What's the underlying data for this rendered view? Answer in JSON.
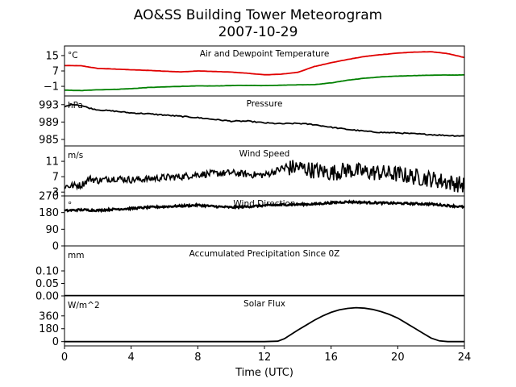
{
  "figure": {
    "title_line1": "AO&SS Building Tower Meteorogram",
    "title_line2": "2007-10-29",
    "xlabel": "Time (UTC)"
  },
  "chart_data": [
    {
      "type": "line",
      "id": "temp",
      "title": "Air and Dewpoint Temperature",
      "unit": "°C",
      "ylim": [
        -6,
        20
      ],
      "yticks": [
        15,
        7,
        -1
      ],
      "xlim": [
        0,
        24
      ],
      "series": [
        {
          "color": "#e00000",
          "x": [
            0,
            1,
            2,
            3,
            4,
            5,
            6,
            7,
            8,
            9,
            10,
            11,
            12,
            13,
            14,
            15,
            16,
            17,
            18,
            19,
            20,
            21,
            22,
            23,
            24
          ],
          "y": [
            9.8,
            9.7,
            8.3,
            8.0,
            7.6,
            7.3,
            6.9,
            6.5,
            7.0,
            6.7,
            6.4,
            5.8,
            5.0,
            5.3,
            6.3,
            9.3,
            11.3,
            13.0,
            14.5,
            15.5,
            16.3,
            16.8,
            17.0,
            16.0,
            14.0
          ]
        },
        {
          "color": "#008000",
          "x": [
            0,
            1,
            2,
            3,
            4,
            5,
            6,
            7,
            8,
            9,
            10,
            11,
            12,
            13,
            14,
            15,
            16,
            17,
            18,
            19,
            20,
            21,
            22,
            23,
            24
          ],
          "y": [
            -3.0,
            -3.2,
            -2.8,
            -2.6,
            -2.2,
            -1.6,
            -1.3,
            -1.0,
            -0.8,
            -0.8,
            -0.6,
            -0.5,
            -0.6,
            -0.4,
            -0.2,
            -0.1,
            0.8,
            2.2,
            3.2,
            3.9,
            4.3,
            4.6,
            4.8,
            4.9,
            4.9
          ]
        }
      ]
    },
    {
      "type": "line",
      "id": "pres",
      "title": "Pressure",
      "unit": "hPa",
      "ylim": [
        983.5,
        995
      ],
      "yticks": [
        993,
        989,
        985
      ],
      "xlim": [
        0,
        24
      ],
      "series": [
        {
          "color": "#000000",
          "x": [
            0,
            0.5,
            1,
            1.5,
            2,
            3,
            4,
            5,
            6,
            7,
            8,
            9,
            10,
            11,
            12,
            13,
            14,
            15,
            16,
            17,
            18,
            19,
            20,
            21,
            22,
            23,
            24
          ],
          "y": [
            992.5,
            993.1,
            992.8,
            992.2,
            991.8,
            991.5,
            991.1,
            990.9,
            990.6,
            990.3,
            990.0,
            989.6,
            989.2,
            989.2,
            988.8,
            988.6,
            988.7,
            988.4,
            987.8,
            987.3,
            986.9,
            986.6,
            986.5,
            986.3,
            986.1,
            985.9,
            985.8
          ]
        }
      ]
    },
    {
      "type": "line",
      "id": "wspd",
      "title": "Wind Speed",
      "unit": "m/s",
      "ylim": [
        2,
        15
      ],
      "yticks": [
        11,
        7,
        3
      ],
      "xlim": [
        0,
        24
      ],
      "series": [
        {
          "color": "#000000",
          "x": [
            0,
            1,
            1.5,
            2,
            3,
            4,
            5,
            6,
            7,
            8,
            9,
            10,
            11,
            12,
            13,
            14,
            15,
            16,
            17,
            18,
            19,
            20,
            21,
            22,
            23,
            24
          ],
          "y": [
            4.5,
            4.8,
            6.5,
            6.0,
            6.6,
            6.2,
            6.4,
            6.8,
            7.0,
            7.6,
            7.8,
            8.0,
            7.6,
            7.4,
            9.0,
            9.5,
            8.6,
            8.0,
            8.8,
            8.2,
            8.0,
            7.6,
            7.0,
            6.4,
            5.6,
            4.8
          ]
        }
      ]
    },
    {
      "type": "line",
      "id": "wdir",
      "title": "Wind Direction",
      "unit": "°",
      "ylim": [
        0,
        270
      ],
      "yticks": [
        270,
        180,
        90,
        0
      ],
      "xlim": [
        0,
        24
      ],
      "series": [
        {
          "color": "#000000",
          "x": [
            0,
            1,
            2,
            3,
            4,
            5,
            6,
            7,
            8,
            9,
            10,
            11,
            12,
            13,
            14,
            15,
            16,
            17,
            18,
            19,
            20,
            21,
            22,
            23,
            24
          ],
          "y": [
            190,
            195,
            192,
            198,
            202,
            208,
            212,
            216,
            220,
            213,
            208,
            212,
            218,
            222,
            224,
            226,
            233,
            238,
            235,
            232,
            230,
            228,
            226,
            218,
            210
          ]
        }
      ]
    },
    {
      "type": "line",
      "id": "precip",
      "title": "Accumulated Precipitation Since 0Z",
      "unit": "mm",
      "ylim": [
        0,
        0.2
      ],
      "yticks": [
        0.1,
        0.05,
        0.0
      ],
      "ytick_labels": [
        "0.10",
        "0.05",
        "0.00"
      ],
      "xlim": [
        0,
        24
      ],
      "series": [
        {
          "color": "#000000",
          "x": [
            0,
            24
          ],
          "y": [
            0,
            0
          ]
        }
      ]
    },
    {
      "type": "line",
      "id": "solar",
      "title": "Solar Flux",
      "unit": "W/m^2",
      "ylim": [
        -60,
        640
      ],
      "yticks": [
        360,
        180,
        0
      ],
      "xlim": [
        0,
        24
      ],
      "xticks": [
        0,
        4,
        8,
        12,
        16,
        20,
        24
      ],
      "series": [
        {
          "color": "#000000",
          "x": [
            0,
            12,
            12.8,
            13.2,
            13.6,
            14,
            14.5,
            15,
            15.5,
            16,
            16.5,
            17,
            17.5,
            18,
            18.5,
            19,
            19.5,
            20,
            20.5,
            21,
            21.5,
            22,
            22.5,
            23,
            24
          ],
          "y": [
            0,
            0,
            5,
            40,
            100,
            160,
            230,
            300,
            360,
            410,
            445,
            465,
            475,
            468,
            450,
            420,
            380,
            330,
            260,
            190,
            120,
            50,
            10,
            0,
            0
          ]
        }
      ]
    }
  ]
}
